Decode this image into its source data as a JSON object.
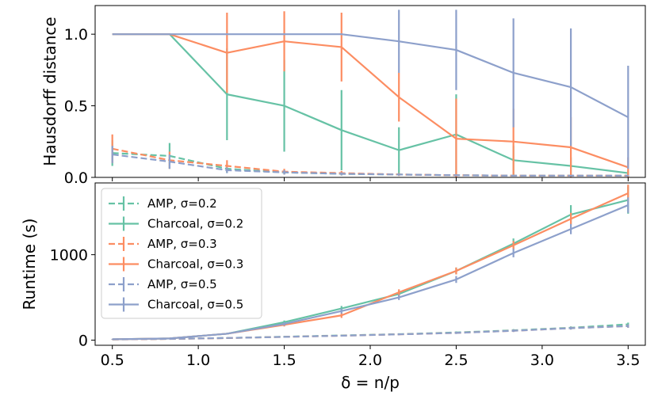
{
  "figure": {
    "xlabel": "δ = n/p"
  },
  "chart_data": [
    {
      "type": "line",
      "title": "",
      "xlabel": "δ = n/p",
      "ylabel": "Hausdorff distance",
      "xlim": [
        0.4,
        3.6
      ],
      "ylim": [
        0.0,
        1.2
      ],
      "yticks": [
        0.0,
        0.5,
        1.0
      ],
      "ytick_labels": [
        "0.0",
        "0.5",
        "1.0"
      ],
      "x": [
        0.5,
        0.833,
        1.167,
        1.5,
        1.833,
        2.167,
        2.5,
        2.833,
        3.167,
        3.5
      ],
      "series": [
        {
          "name": "AMP, σ=0.2",
          "color": "#66c2a5",
          "dashed": true,
          "values": [
            0.17,
            0.15,
            0.06,
            0.035,
            0.025,
            0.02,
            0.015,
            0.012,
            0.012,
            0.012
          ],
          "err": [
            0.09,
            0.09,
            0.03,
            0.015,
            0.012,
            0.01,
            0.008,
            0.006,
            0.006,
            0.006
          ]
        },
        {
          "name": "Charcoal, σ=0.2",
          "color": "#66c2a5",
          "dashed": false,
          "values": [
            1.0,
            1.0,
            0.58,
            0.5,
            0.33,
            0.19,
            0.3,
            0.12,
            0.08,
            0.03
          ],
          "err": [
            0,
            0,
            0.32,
            0.32,
            0.28,
            0.16,
            0.28,
            0.1,
            0.06,
            0.02
          ]
        },
        {
          "name": "AMP, σ=0.3",
          "color": "#fc8d62",
          "dashed": true,
          "values": [
            0.2,
            0.12,
            0.08,
            0.04,
            0.03,
            0.02,
            0.015,
            0.012,
            0.012,
            0.012
          ],
          "err": [
            0.1,
            0.06,
            0.04,
            0.02,
            0.015,
            0.01,
            0.008,
            0.006,
            0.006,
            0.006
          ]
        },
        {
          "name": "Charcoal, σ=0.3",
          "color": "#fc8d62",
          "dashed": false,
          "values": [
            1.0,
            1.0,
            0.87,
            0.95,
            0.91,
            0.56,
            0.27,
            0.25,
            0.21,
            0.07
          ],
          "err": [
            0,
            0,
            0.28,
            0.21,
            0.24,
            0.17,
            0.28,
            0.23,
            0.21,
            0.07
          ]
        },
        {
          "name": "AMP, σ=0.5",
          "color": "#8da0cb",
          "dashed": true,
          "values": [
            0.16,
            0.11,
            0.05,
            0.035,
            0.025,
            0.02,
            0.015,
            0.012,
            0.012,
            0.012
          ],
          "err": [
            0.06,
            0.05,
            0.02,
            0.015,
            0.01,
            0.008,
            0.006,
            0.005,
            0.005,
            0.005
          ]
        },
        {
          "name": "Charcoal, σ=0.5",
          "color": "#8da0cb",
          "dashed": false,
          "values": [
            1.0,
            1.0,
            1.0,
            1.0,
            1.0,
            0.95,
            0.89,
            0.73,
            0.63,
            0.42
          ],
          "err": [
            0,
            0,
            0,
            0,
            0,
            0.22,
            0.28,
            0.38,
            0.41,
            0.36
          ]
        }
      ]
    },
    {
      "type": "line",
      "title": "",
      "xlabel": "δ = n/p",
      "ylabel": "Runtime (s)",
      "xlim": [
        0.4,
        3.6
      ],
      "ylim": [
        -60,
        1840
      ],
      "yticks": [
        0,
        1000
      ],
      "ytick_labels": [
        "0",
        "1000"
      ],
      "xticks": [
        0.5,
        1.0,
        1.5,
        2.0,
        2.5,
        3.0,
        3.5
      ],
      "xtick_labels": [
        "0.5",
        "1.0",
        "1.5",
        "2.0",
        "2.5",
        "3.0",
        "3.5"
      ],
      "legend_location": "upper-left",
      "x": [
        0.5,
        0.833,
        1.167,
        1.5,
        1.833,
        2.167,
        2.5,
        2.833,
        3.167,
        3.5
      ],
      "series": [
        {
          "name": "AMP, σ=0.2",
          "color": "#66c2a5",
          "dashed": true,
          "values": [
            8,
            15,
            25,
            40,
            55,
            70,
            90,
            115,
            145,
            185
          ],
          "err": [
            2,
            3,
            5,
            6,
            8,
            10,
            12,
            14,
            16,
            20
          ]
        },
        {
          "name": "Charcoal, σ=0.2",
          "color": "#66c2a5",
          "dashed": false,
          "values": [
            10,
            20,
            75,
            210,
            370,
            540,
            810,
            1130,
            1470,
            1640
          ],
          "err": [
            3,
            5,
            10,
            20,
            30,
            40,
            40,
            60,
            110,
            160
          ]
        },
        {
          "name": "AMP, σ=0.3",
          "color": "#fc8d62",
          "dashed": true,
          "values": [
            8,
            14,
            24,
            38,
            52,
            68,
            85,
            110,
            140,
            165
          ],
          "err": [
            2,
            3,
            5,
            6,
            8,
            10,
            12,
            14,
            16,
            20
          ]
        },
        {
          "name": "Charcoal, σ=0.3",
          "color": "#fc8d62",
          "dashed": false,
          "values": [
            10,
            20,
            75,
            180,
            290,
            560,
            810,
            1110,
            1420,
            1720
          ],
          "err": [
            3,
            5,
            10,
            20,
            30,
            35,
            40,
            50,
            70,
            100
          ]
        },
        {
          "name": "AMP, σ=0.5",
          "color": "#8da0cb",
          "dashed": true,
          "values": [
            10,
            15,
            25,
            38,
            52,
            68,
            85,
            110,
            140,
            165
          ],
          "err": [
            2,
            3,
            5,
            6,
            8,
            10,
            12,
            14,
            16,
            20
          ]
        },
        {
          "name": "Charcoal, σ=0.5",
          "color": "#8da0cb",
          "dashed": false,
          "values": [
            10,
            20,
            75,
            190,
            340,
            500,
            710,
            1020,
            1300,
            1580
          ],
          "err": [
            3,
            5,
            10,
            20,
            30,
            30,
            40,
            50,
            60,
            90
          ]
        }
      ]
    }
  ]
}
